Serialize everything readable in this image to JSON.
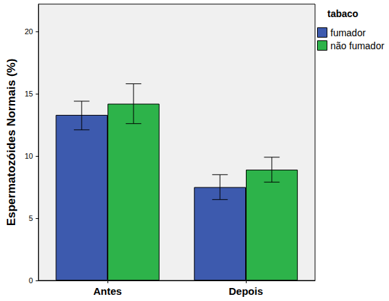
{
  "chart_data": {
    "type": "bar",
    "categories": [
      "Antes",
      "Depois"
    ],
    "ylabel": "Espermatozóides Normais (%)",
    "legend_title": "tabaco",
    "series": [
      {
        "name": "fumador",
        "color": "#3d5aae",
        "values": [
          13.3,
          7.5
        ],
        "error_low": [
          12.1,
          6.5
        ],
        "error_high": [
          14.4,
          8.5
        ]
      },
      {
        "name": "não fumador",
        "color": "#2db34a",
        "values": [
          14.2,
          8.9
        ],
        "error_low": [
          12.6,
          7.9
        ],
        "error_high": [
          15.8,
          9.9
        ]
      }
    ],
    "ylim": [
      0,
      22.2
    ],
    "yticks": [
      0,
      5,
      10,
      15,
      20
    ],
    "grid": false,
    "legend": "upper right"
  }
}
